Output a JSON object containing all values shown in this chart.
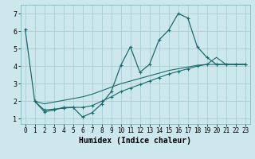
{
  "xlabel": "Humidex (Indice chaleur)",
  "xlim": [
    -0.5,
    23.5
  ],
  "ylim": [
    0.7,
    7.5
  ],
  "xticks": [
    0,
    1,
    2,
    3,
    4,
    5,
    6,
    7,
    8,
    9,
    10,
    11,
    12,
    13,
    14,
    15,
    16,
    17,
    18,
    19,
    20,
    21,
    22,
    23
  ],
  "yticks": [
    1,
    2,
    3,
    4,
    5,
    6,
    7
  ],
  "background_color": "#cce8ed",
  "grid_color": "#aacdd4",
  "line_color": "#1a6b6b",
  "series1_x": [
    0,
    1,
    2,
    3,
    4,
    5,
    6,
    7,
    8,
    9,
    10,
    11,
    12,
    13,
    14,
    15,
    16,
    17,
    18,
    19,
    20,
    21,
    22,
    23
  ],
  "series1_y": [
    6.1,
    2.0,
    1.4,
    1.5,
    1.65,
    1.65,
    1.1,
    1.35,
    1.85,
    2.55,
    4.05,
    5.1,
    3.65,
    4.1,
    5.5,
    6.05,
    7.0,
    6.75,
    5.1,
    4.5,
    4.1,
    4.1,
    4.1,
    4.1
  ],
  "series2_x": [
    1,
    2,
    3,
    4,
    5,
    6,
    7,
    8,
    9,
    10,
    11,
    12,
    13,
    14,
    15,
    16,
    17,
    18,
    19,
    20,
    21,
    22,
    23
  ],
  "series2_y": [
    2.0,
    1.5,
    1.55,
    1.6,
    1.65,
    1.65,
    1.75,
    2.0,
    2.25,
    2.55,
    2.75,
    2.95,
    3.15,
    3.35,
    3.55,
    3.7,
    3.85,
    4.0,
    4.1,
    4.1,
    4.1,
    4.1,
    4.1
  ],
  "series3_x": [
    1,
    2,
    3,
    4,
    5,
    6,
    7,
    8,
    9,
    10,
    11,
    12,
    13,
    14,
    15,
    16,
    17,
    18,
    19,
    20,
    21,
    22,
    23
  ],
  "series3_y": [
    2.0,
    1.85,
    1.95,
    2.05,
    2.15,
    2.25,
    2.4,
    2.6,
    2.8,
    3.0,
    3.15,
    3.3,
    3.45,
    3.6,
    3.75,
    3.85,
    3.95,
    4.05,
    4.1,
    4.5,
    4.1,
    4.1,
    4.1
  ],
  "xlabel_fontsize": 7,
  "tick_fontsize": 5.5
}
